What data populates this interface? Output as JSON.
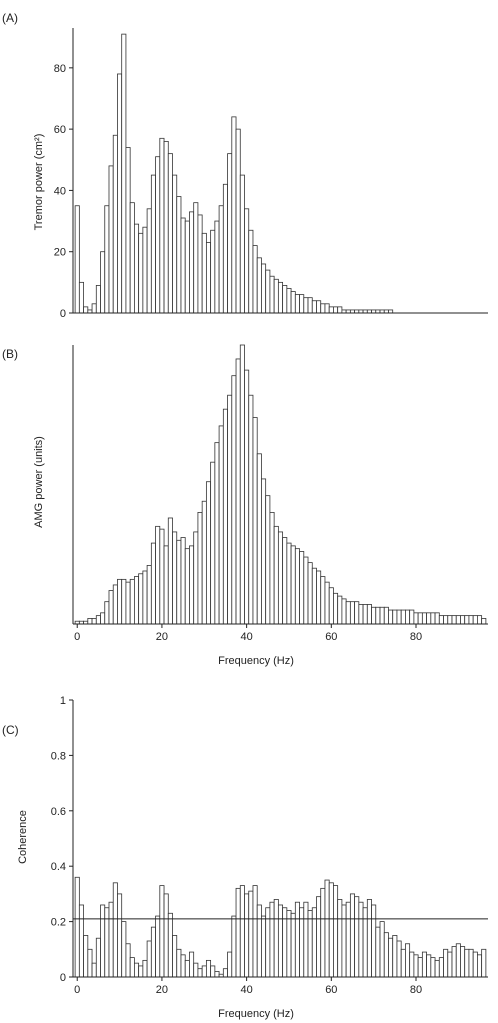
{
  "chart_data": [
    {
      "type": "bar",
      "panel_label": "(A)",
      "ylabel": "Tremor power (cm²)",
      "xlabel": "",
      "xlim": [
        -1,
        97
      ],
      "ylim": [
        0,
        93
      ],
      "yticks": [
        0,
        20,
        40,
        60,
        80
      ],
      "xticks": [],
      "bin_width": 1,
      "x": [
        0,
        1,
        2,
        3,
        4,
        5,
        6,
        7,
        8,
        9,
        10,
        11,
        12,
        13,
        14,
        15,
        16,
        17,
        18,
        19,
        20,
        21,
        22,
        23,
        24,
        25,
        26,
        27,
        28,
        29,
        30,
        31,
        32,
        33,
        34,
        35,
        36,
        37,
        38,
        39,
        40,
        41,
        42,
        43,
        44,
        45,
        46,
        47,
        48,
        49,
        50,
        51,
        52,
        53,
        54,
        55,
        56,
        57,
        58,
        59,
        60,
        61,
        62,
        63,
        64,
        65,
        66,
        67,
        68,
        69,
        70,
        71,
        72,
        73,
        74,
        75,
        76,
        77,
        78,
        79,
        80,
        81,
        82,
        83,
        84,
        85,
        86,
        87,
        88,
        89,
        90,
        91,
        92,
        93,
        94,
        95,
        96
      ],
      "values": [
        35,
        10,
        2,
        1,
        3,
        9,
        20,
        35,
        48,
        58,
        78,
        91,
        54,
        36,
        29,
        26,
        28,
        34,
        45,
        51,
        57,
        56,
        52,
        45,
        38,
        31,
        30,
        33,
        36,
        32,
        26,
        23,
        27,
        30,
        35,
        42,
        52,
        64,
        60,
        45,
        34,
        27,
        22,
        18,
        16,
        14,
        12,
        11,
        10,
        9,
        8,
        7,
        6,
        6,
        5,
        5,
        4,
        4,
        3,
        3,
        2,
        2,
        2,
        1,
        1,
        1,
        1,
        1,
        1,
        1,
        1,
        1,
        1,
        1,
        1,
        0,
        0,
        0,
        0,
        0,
        0,
        0,
        0,
        0,
        0,
        0,
        0,
        0,
        0,
        0,
        0,
        0,
        0,
        0,
        0,
        0,
        0
      ]
    },
    {
      "type": "bar",
      "panel_label": "(B)",
      "ylabel": "AMG power (units)",
      "xlabel": "Frequency (Hz)",
      "xlim": [
        -1,
        97
      ],
      "ylim": [
        0,
        100
      ],
      "yticks": [],
      "xticks": [
        0,
        20,
        40,
        60,
        80
      ],
      "bin_width": 1,
      "x": [
        0,
        1,
        2,
        3,
        4,
        5,
        6,
        7,
        8,
        9,
        10,
        11,
        12,
        13,
        14,
        15,
        16,
        17,
        18,
        19,
        20,
        21,
        22,
        23,
        24,
        25,
        26,
        27,
        28,
        29,
        30,
        31,
        32,
        33,
        34,
        35,
        36,
        37,
        38,
        39,
        40,
        41,
        42,
        43,
        44,
        45,
        46,
        47,
        48,
        49,
        50,
        51,
        52,
        53,
        54,
        55,
        56,
        57,
        58,
        59,
        60,
        61,
        62,
        63,
        64,
        65,
        66,
        67,
        68,
        69,
        70,
        71,
        72,
        73,
        74,
        75,
        76,
        77,
        78,
        79,
        80,
        81,
        82,
        83,
        84,
        85,
        86,
        87,
        88,
        89,
        90,
        91,
        92,
        93,
        94,
        95,
        96
      ],
      "values": [
        1,
        1,
        1,
        2,
        2,
        3,
        4,
        8,
        12,
        14,
        16,
        16,
        15,
        16,
        17,
        18,
        19,
        21,
        29,
        35,
        34,
        28,
        38,
        33,
        30,
        31,
        27,
        28,
        33,
        40,
        44,
        51,
        58,
        65,
        71,
        77,
        82,
        89,
        95,
        100,
        91,
        82,
        74,
        61,
        52,
        46,
        40,
        35,
        33,
        31,
        29,
        28,
        27,
        26,
        24,
        22,
        20,
        19,
        17,
        15,
        13,
        11,
        10,
        9,
        8,
        8,
        8,
        7,
        7,
        7,
        6,
        6,
        6,
        6,
        5,
        5,
        5,
        5,
        5,
        5,
        4,
        4,
        4,
        4,
        4,
        4,
        3,
        3,
        3,
        3,
        3,
        3,
        3,
        3,
        3,
        3,
        2
      ]
    },
    {
      "type": "bar",
      "panel_label": "(C)",
      "ylabel": "Coherence",
      "xlabel": "Frequency (Hz)",
      "xlim": [
        -1,
        97
      ],
      "ylim": [
        0,
        1
      ],
      "yticks": [
        0,
        0.2,
        0.4,
        0.6,
        0.8,
        1
      ],
      "ytick_labels": [
        "0",
        "0.2",
        "0.4",
        "0.6",
        "0.8",
        "1"
      ],
      "xticks": [
        0,
        20,
        40,
        60,
        80
      ],
      "bin_width": 1,
      "reference_line": 0.21,
      "x": [
        0,
        1,
        2,
        3,
        4,
        5,
        6,
        7,
        8,
        9,
        10,
        11,
        12,
        13,
        14,
        15,
        16,
        17,
        18,
        19,
        20,
        21,
        22,
        23,
        24,
        25,
        26,
        27,
        28,
        29,
        30,
        31,
        32,
        33,
        34,
        35,
        36,
        37,
        38,
        39,
        40,
        41,
        42,
        43,
        44,
        45,
        46,
        47,
        48,
        49,
        50,
        51,
        52,
        53,
        54,
        55,
        56,
        57,
        58,
        59,
        60,
        61,
        62,
        63,
        64,
        65,
        66,
        67,
        68,
        69,
        70,
        71,
        72,
        73,
        74,
        75,
        76,
        77,
        78,
        79,
        80,
        81,
        82,
        83,
        84,
        85,
        86,
        87,
        88,
        89,
        90,
        91,
        92,
        93,
        94,
        95,
        96
      ],
      "values": [
        0.36,
        0.26,
        0.15,
        0.1,
        0.05,
        0.14,
        0.26,
        0.25,
        0.27,
        0.34,
        0.3,
        0.2,
        0.12,
        0.07,
        0.05,
        0.04,
        0.06,
        0.13,
        0.18,
        0.22,
        0.33,
        0.3,
        0.23,
        0.15,
        0.1,
        0.08,
        0.06,
        0.09,
        0.05,
        0.03,
        0.04,
        0.06,
        0.04,
        0.02,
        0.01,
        0.03,
        0.09,
        0.22,
        0.32,
        0.33,
        0.3,
        0.31,
        0.33,
        0.26,
        0.22,
        0.25,
        0.27,
        0.28,
        0.26,
        0.25,
        0.24,
        0.23,
        0.27,
        0.25,
        0.27,
        0.24,
        0.25,
        0.29,
        0.32,
        0.35,
        0.34,
        0.33,
        0.28,
        0.26,
        0.27,
        0.3,
        0.29,
        0.27,
        0.25,
        0.28,
        0.26,
        0.18,
        0.2,
        0.16,
        0.14,
        0.15,
        0.13,
        0.1,
        0.12,
        0.09,
        0.08,
        0.07,
        0.09,
        0.08,
        0.07,
        0.06,
        0.07,
        0.1,
        0.09,
        0.11,
        0.12,
        0.11,
        0.1,
        0.1,
        0.09,
        0.08,
        0.1
      ]
    }
  ]
}
